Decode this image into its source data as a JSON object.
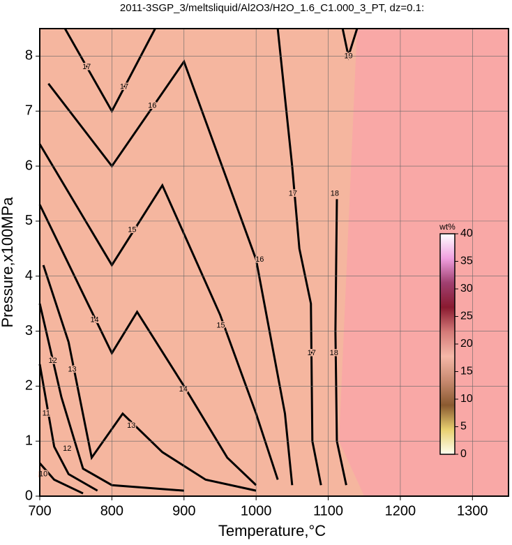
{
  "chart_data": {
    "type": "contour",
    "title": "2011-3SGP_3/meltsliquid/Al2O3/H2O_1.6_C1.000_3_PT, dz=0.1:",
    "xlabel": "Temperature,°C",
    "ylabel": "Pressure,x100MPa",
    "xlim": [
      700,
      1350
    ],
    "ylim": [
      0,
      8.5
    ],
    "xticks": [
      700,
      800,
      900,
      1000,
      1100,
      1200,
      1300
    ],
    "yticks": [
      0,
      1,
      2,
      3,
      4,
      5,
      6,
      7,
      8
    ],
    "grid": true,
    "background": "#f9a8a6",
    "fill": "#f5b69f",
    "contours": [
      {
        "level": 10,
        "x": [
          700,
          720,
          760
        ],
        "y": [
          0.6,
          0.3,
          0.05
        ],
        "labels": [
          [
            705,
            0.4
          ]
        ]
      },
      {
        "level": 11,
        "x": [
          700,
          720,
          740,
          780
        ],
        "y": [
          2.4,
          0.9,
          0.4,
          0.1
        ],
        "labels": [
          [
            709,
            1.5
          ]
        ]
      },
      {
        "level": 12,
        "x": [
          700,
          730,
          760,
          800,
          900
        ],
        "y": [
          3.5,
          1.8,
          0.5,
          0.2,
          0.1
        ],
        "labels": [
          [
            718,
            2.46
          ],
          [
            738,
            0.86
          ]
        ]
      },
      {
        "level": 13,
        "x": [
          705,
          740,
          772,
          815,
          870,
          930,
          1000
        ],
        "y": [
          4.2,
          2.8,
          0.7,
          1.5,
          0.8,
          0.3,
          0.1
        ],
        "labels": [
          [
            745,
            2.3
          ],
          [
            827,
            1.28
          ]
        ]
      },
      {
        "level": 14,
        "x": [
          700,
          800,
          835,
          900,
          960,
          1000
        ],
        "y": [
          5.3,
          2.6,
          3.35,
          2.0,
          0.7,
          0.2
        ],
        "labels": [
          [
            776,
            3.2
          ],
          [
            899,
            1.94
          ]
        ]
      },
      {
        "level": 15,
        "x": [
          700,
          800,
          870,
          950,
          1000,
          1030
        ],
        "y": [
          6.4,
          4.2,
          5.65,
          3.3,
          1.5,
          0.3
        ],
        "labels": [
          [
            828,
            4.84
          ],
          [
            951,
            3.1
          ]
        ]
      },
      {
        "level": 16,
        "x": [
          712,
          800,
          900,
          1000,
          1040,
          1050
        ],
        "y": [
          7.5,
          6.0,
          7.9,
          4.3,
          1.5,
          0.2
        ],
        "labels": [
          [
            856,
            7.1
          ],
          [
            1005,
            4.3
          ]
        ]
      },
      {
        "level": 17,
        "x": [
          735,
          800,
          860
        ],
        "y": [
          8.5,
          7.0,
          8.5
        ],
        "labels": [
          [
            765,
            7.8
          ],
          [
            817,
            7.44
          ]
        ]
      },
      {
        "level": 17,
        "x": [
          1090,
          1078,
          1076,
          1060,
          1050,
          1030
        ],
        "y": [
          0.2,
          1,
          3.5,
          4.5,
          6,
          8.5
        ],
        "labels": [
          [
            1051,
            5.5
          ],
          [
            1077,
            2.6
          ]
        ]
      },
      {
        "level": 18,
        "x": [
          1125,
          1112,
          1110,
          1112
        ],
        "y": [
          0.2,
          1,
          3,
          5.4
        ],
        "labels": [
          [
            1109,
            5.5
          ],
          [
            1108,
            2.6
          ]
        ]
      },
      {
        "level": 19,
        "x": [
          1120,
          1128,
          1140
        ],
        "y": [
          8.5,
          8.0,
          8.5
        ],
        "labels": [
          [
            1128,
            8.0
          ]
        ]
      }
    ],
    "colorbar": {
      "label": "wt%",
      "lim": [
        0,
        40
      ],
      "ticks": [
        0,
        5,
        10,
        15,
        20,
        25,
        30,
        35,
        40
      ],
      "colors": [
        "#fffff0",
        "#e8d070",
        "#8a5a30",
        "#c88a70",
        "#f6b8a8",
        "#d47a78",
        "#8a1a30",
        "#a04070",
        "#f0a0e0",
        "#ffffff"
      ]
    }
  }
}
